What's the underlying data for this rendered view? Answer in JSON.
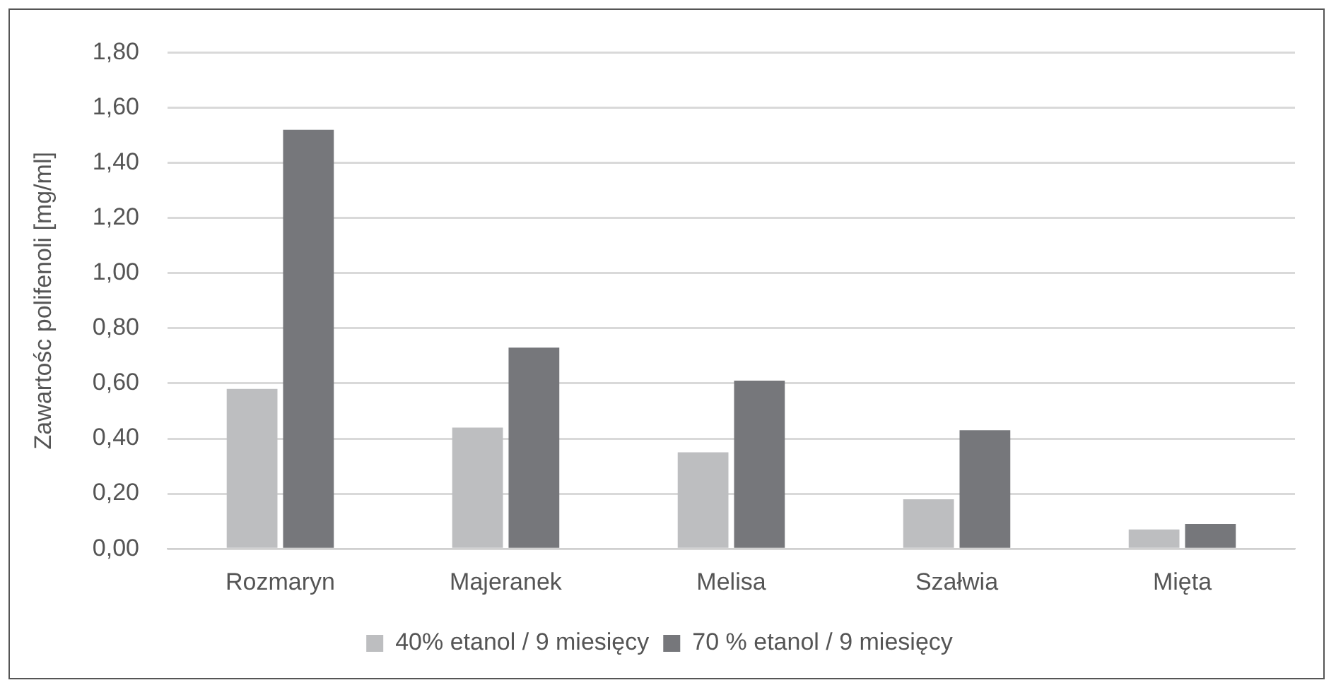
{
  "chart_data": {
    "type": "bar",
    "ylabel": "Zawartośc polifenoli [mg/ml]",
    "categories": [
      "Rozmaryn",
      "Majeranek",
      "Melisa",
      "Szałwia",
      "Mięta"
    ],
    "series": [
      {
        "name": "40% etanol / 9 miesięcy",
        "color": "#bdbec0",
        "values": [
          0.58,
          0.44,
          0.35,
          0.18,
          0.07
        ]
      },
      {
        "name": "70 % etanol / 9 miesięcy",
        "color": "#76777b",
        "values": [
          1.52,
          0.73,
          0.61,
          0.43,
          0.09
        ]
      }
    ],
    "ylim": [
      0,
      1.8
    ],
    "yticks": [
      {
        "value": 0,
        "label": "0,00"
      },
      {
        "value": 0.2,
        "label": "0,20"
      },
      {
        "value": 0.4,
        "label": "0,40"
      },
      {
        "value": 0.6,
        "label": "0,60"
      },
      {
        "value": 0.8,
        "label": "0,80"
      },
      {
        "value": 1,
        "label": "1,00"
      },
      {
        "value": 1.2,
        "label": "1,20"
      },
      {
        "value": 1.4,
        "label": "1,40"
      },
      {
        "value": 1.6,
        "label": "1,60"
      },
      {
        "value": 1.8,
        "label": "1,80"
      }
    ],
    "grid": "y",
    "legend": "bottom"
  }
}
